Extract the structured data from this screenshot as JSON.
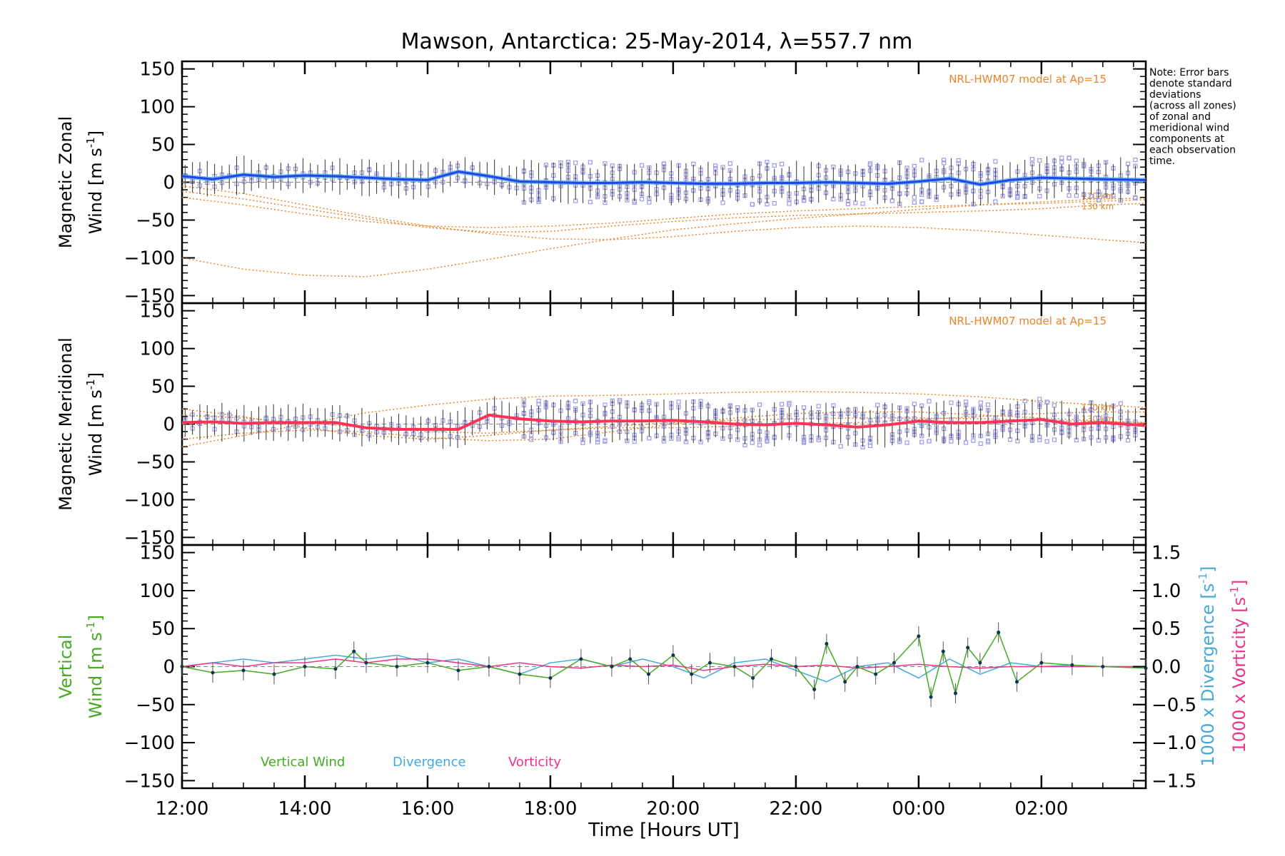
{
  "title": "Mawson, Antarctica: 25-May-2014, λ=557.7 nm",
  "note": [
    "Note: Error bars",
    "denote standard",
    "deviations",
    "(across all zones)",
    "of zonal and",
    "meridional wind",
    "components at",
    "each observation",
    "time."
  ],
  "colors": {
    "axis": "#000000",
    "model": "#e8852a",
    "zonal": "#2244ee",
    "zonal_fit": "#5ab4e0",
    "meridional": "#ff3355",
    "scatter": "#9a9ae6",
    "vertical": "#44aa22",
    "divergence": "#44a8dd",
    "vorticity": "#ee3388"
  },
  "chart_data": [
    {
      "type": "line",
      "panel": "zonal",
      "ylabel": [
        "Magnetic Zonal",
        "Wind [m s",
        "-1",
        "]"
      ],
      "ylim": [
        -160,
        160
      ],
      "yticks": [
        -150,
        -100,
        -50,
        0,
        50,
        100,
        150
      ],
      "xlim": [
        12,
        27.7
      ],
      "model_label": "NRL-HWM07 model at Ap=15",
      "model_curve_labels": [
        "120 km",
        "130 km"
      ],
      "series": [
        {
          "name": "mean",
          "x": [
            12,
            12.5,
            13,
            13.5,
            14,
            14.5,
            15,
            15.5,
            16,
            16.5,
            17,
            17.5,
            18,
            18.5,
            19,
            19.5,
            20,
            20.5,
            21,
            21.5,
            22,
            22.5,
            23,
            23.5,
            24,
            24.5,
            25,
            25.5,
            26,
            26.5,
            27,
            27.7
          ],
          "values": [
            8,
            4,
            10,
            7,
            9,
            8,
            6,
            4,
            3,
            14,
            8,
            1,
            0,
            -1,
            -1,
            0,
            -1,
            -2,
            -2,
            -1,
            -1,
            0,
            -1,
            -2,
            1,
            5,
            -3,
            3,
            6,
            5,
            4,
            3
          ]
        },
        {
          "name": "model-1",
          "x": [
            12,
            13,
            14,
            15,
            16,
            17,
            18,
            19,
            20,
            21,
            22,
            23,
            24,
            25,
            26,
            27,
            27.7
          ],
          "values": [
            -12,
            -22,
            -35,
            -48,
            -60,
            -66,
            -65,
            -58,
            -52,
            -47,
            -44,
            -42,
            -40,
            -38,
            -35,
            -30,
            -28
          ]
        },
        {
          "name": "model-2",
          "x": [
            12,
            13,
            14,
            15,
            16,
            17,
            18,
            19,
            20,
            21,
            22,
            23,
            24,
            25,
            26,
            27,
            27.7
          ],
          "values": [
            -100,
            -115,
            -123,
            -125,
            -115,
            -102,
            -88,
            -75,
            -63,
            -55,
            -48,
            -42,
            -36,
            -30,
            -26,
            -22,
            -21
          ]
        },
        {
          "name": "model-3",
          "x": [
            12,
            13,
            14,
            15,
            16,
            17,
            18,
            19,
            20,
            21,
            22,
            23,
            24,
            25,
            26,
            27,
            27.7
          ],
          "values": [
            -5,
            -15,
            -30,
            -45,
            -58,
            -68,
            -75,
            -76,
            -72,
            -65,
            -60,
            -58,
            -60,
            -64,
            -70,
            -76,
            -80
          ]
        },
        {
          "name": "model-4",
          "x": [
            12,
            13,
            14,
            15,
            16,
            17,
            18,
            19,
            20,
            21,
            22,
            23,
            24,
            25,
            26,
            27,
            27.7
          ],
          "values": [
            -20,
            -30,
            -42,
            -52,
            -58,
            -60,
            -58,
            -54,
            -48,
            -42,
            -38,
            -35,
            -32,
            -30,
            -28,
            -25,
            -23
          ]
        }
      ]
    },
    {
      "type": "line",
      "panel": "meridional",
      "ylabel": [
        "Magnetic Meridional",
        "Wind [m s",
        "-1",
        "]"
      ],
      "ylim": [
        -160,
        160
      ],
      "yticks": [
        -150,
        -100,
        -50,
        0,
        50,
        100,
        150
      ],
      "xlim": [
        12,
        27.7
      ],
      "model_label": "NRL-HWM07 model at Ap=15",
      "model_curve_labels": [
        "120 km",
        "130 km"
      ],
      "series": [
        {
          "name": "mean",
          "x": [
            12,
            12.5,
            13,
            13.5,
            14,
            14.5,
            15,
            15.5,
            16,
            16.5,
            17,
            17.5,
            18,
            18.5,
            19,
            19.5,
            20,
            20.5,
            21,
            21.5,
            22,
            22.5,
            23,
            23.5,
            24,
            24.5,
            25,
            25.5,
            26,
            26.5,
            27,
            27.7
          ],
          "values": [
            2,
            3,
            1,
            2,
            2,
            2,
            -5,
            -7,
            -7,
            -7,
            12,
            7,
            4,
            3,
            4,
            4,
            5,
            3,
            0,
            -1,
            1,
            -1,
            -4,
            -1,
            4,
            2,
            2,
            4,
            6,
            0,
            2,
            -2
          ]
        },
        {
          "name": "model-1",
          "x": [
            12,
            13,
            14,
            15,
            16,
            17,
            18,
            19,
            20,
            21,
            22,
            23,
            24,
            25,
            26,
            27,
            27.7
          ],
          "values": [
            -30,
            -15,
            0,
            15,
            25,
            33,
            37,
            38,
            40,
            42,
            43,
            42,
            40,
            36,
            30,
            25,
            22
          ]
        },
        {
          "name": "model-2",
          "x": [
            12,
            13,
            14,
            15,
            16,
            17,
            18,
            19,
            20,
            21,
            22,
            23,
            24,
            25,
            26,
            27,
            27.7
          ],
          "values": [
            -20,
            -12,
            -8,
            -10,
            -18,
            -22,
            -20,
            -10,
            0,
            8,
            14,
            16,
            16,
            12,
            8,
            4,
            2
          ]
        },
        {
          "name": "model-3",
          "x": [
            12,
            13,
            14,
            15,
            16,
            17,
            18,
            19,
            20,
            21,
            22,
            23,
            24,
            25,
            26,
            27,
            27.7
          ],
          "values": [
            20,
            10,
            -5,
            -15,
            -20,
            -15,
            -8,
            -5,
            -5,
            -3,
            0,
            2,
            6,
            10,
            14,
            16,
            16
          ]
        },
        {
          "name": "model-4",
          "x": [
            12,
            13,
            14,
            15,
            16,
            17,
            18,
            19,
            20,
            21,
            22,
            23,
            24,
            25,
            26,
            27,
            27.7
          ],
          "values": [
            12,
            8,
            2,
            -5,
            -10,
            -12,
            -8,
            -3,
            2,
            5,
            7,
            8,
            8,
            7,
            5,
            3,
            2
          ]
        }
      ]
    },
    {
      "type": "line",
      "panel": "vertical",
      "ylabel": [
        "Vertical",
        "Wind [m s",
        "-1",
        "]"
      ],
      "ylim": [
        -160,
        160
      ],
      "yticks": [
        -150,
        -100,
        -50,
        0,
        50,
        100,
        150
      ],
      "y2label_div": [
        "1000 x Divergence [s",
        "-1",
        "]"
      ],
      "y2label_vort": [
        "1000 x Vorticity [s",
        "-1",
        "]"
      ],
      "y2lim": [
        -1.6,
        1.6
      ],
      "y2ticks": [
        -1.5,
        -1.0,
        -0.5,
        0.0,
        0.5,
        1.0,
        1.5
      ],
      "xlim": [
        12,
        27.7
      ],
      "xlabel": "Time [Hours UT]",
      "xticks": [
        12,
        14,
        16,
        18,
        20,
        22,
        24,
        26
      ],
      "xtick_labels": [
        "12:00",
        "14:00",
        "16:00",
        "18:00",
        "20:00",
        "22:00",
        "00:00",
        "02:00"
      ],
      "legend": [
        "Vertical Wind",
        "Divergence",
        "Vorticity"
      ],
      "series": [
        {
          "name": "Vertical Wind",
          "x": [
            12,
            12.5,
            13,
            13.5,
            14,
            14.5,
            14.8,
            15,
            15.5,
            16,
            16.5,
            17,
            17.5,
            18,
            18.5,
            19,
            19.3,
            19.6,
            20,
            20.3,
            20.6,
            21,
            21.3,
            21.6,
            22,
            22.3,
            22.5,
            22.8,
            23,
            23.3,
            23.6,
            24,
            24.2,
            24.4,
            24.6,
            24.8,
            25,
            25.3,
            25.6,
            26,
            26.5,
            27,
            27.7
          ],
          "values": [
            0,
            -8,
            -5,
            -10,
            0,
            -3,
            20,
            5,
            0,
            5,
            -5,
            0,
            -10,
            -15,
            10,
            0,
            10,
            -10,
            15,
            -10,
            5,
            0,
            -15,
            10,
            0,
            -30,
            30,
            -20,
            0,
            -10,
            5,
            40,
            -40,
            20,
            -35,
            25,
            5,
            45,
            -20,
            5,
            2,
            0,
            -2
          ]
        },
        {
          "name": "Divergence",
          "x": [
            12,
            12.5,
            13,
            13.5,
            14,
            14.5,
            15,
            15.5,
            16,
            16.5,
            17,
            17.5,
            18,
            18.5,
            19,
            19.5,
            20,
            20.5,
            21,
            21.5,
            22,
            22.5,
            23,
            23.5,
            24,
            24.5,
            25,
            25.5,
            26,
            26.5,
            27,
            27.7
          ],
          "values": [
            0,
            0.05,
            0.1,
            0.05,
            0.1,
            0.15,
            0.1,
            0.15,
            0.05,
            0.1,
            0.0,
            -0.1,
            0.05,
            0.1,
            0.0,
            0.1,
            0.0,
            -0.15,
            0.05,
            0.1,
            -0.05,
            -0.2,
            0.0,
            0.05,
            -0.15,
            0.1,
            -0.1,
            0.05,
            0.0,
            0.02,
            0.0,
            0.0
          ]
        },
        {
          "name": "Vorticity",
          "x": [
            12,
            12.5,
            13,
            13.5,
            14,
            14.5,
            15,
            15.5,
            16,
            16.5,
            17,
            17.5,
            18,
            18.5,
            19,
            19.5,
            20,
            20.5,
            21,
            21.5,
            22,
            22.5,
            23,
            23.5,
            24,
            24.5,
            25,
            25.5,
            26,
            26.5,
            27,
            27.7
          ],
          "values": [
            0,
            0.05,
            0.0,
            0.05,
            0.05,
            0.1,
            0.05,
            0.1,
            0.1,
            0.05,
            0.0,
            0.05,
            0.0,
            -0.02,
            0.02,
            0.0,
            0.02,
            -0.05,
            0.0,
            0.03,
            0.0,
            0.02,
            -0.02,
            0.0,
            0.03,
            0.0,
            -0.02,
            0.0,
            0.0,
            0.0,
            0.0,
            0.0
          ]
        }
      ]
    }
  ]
}
